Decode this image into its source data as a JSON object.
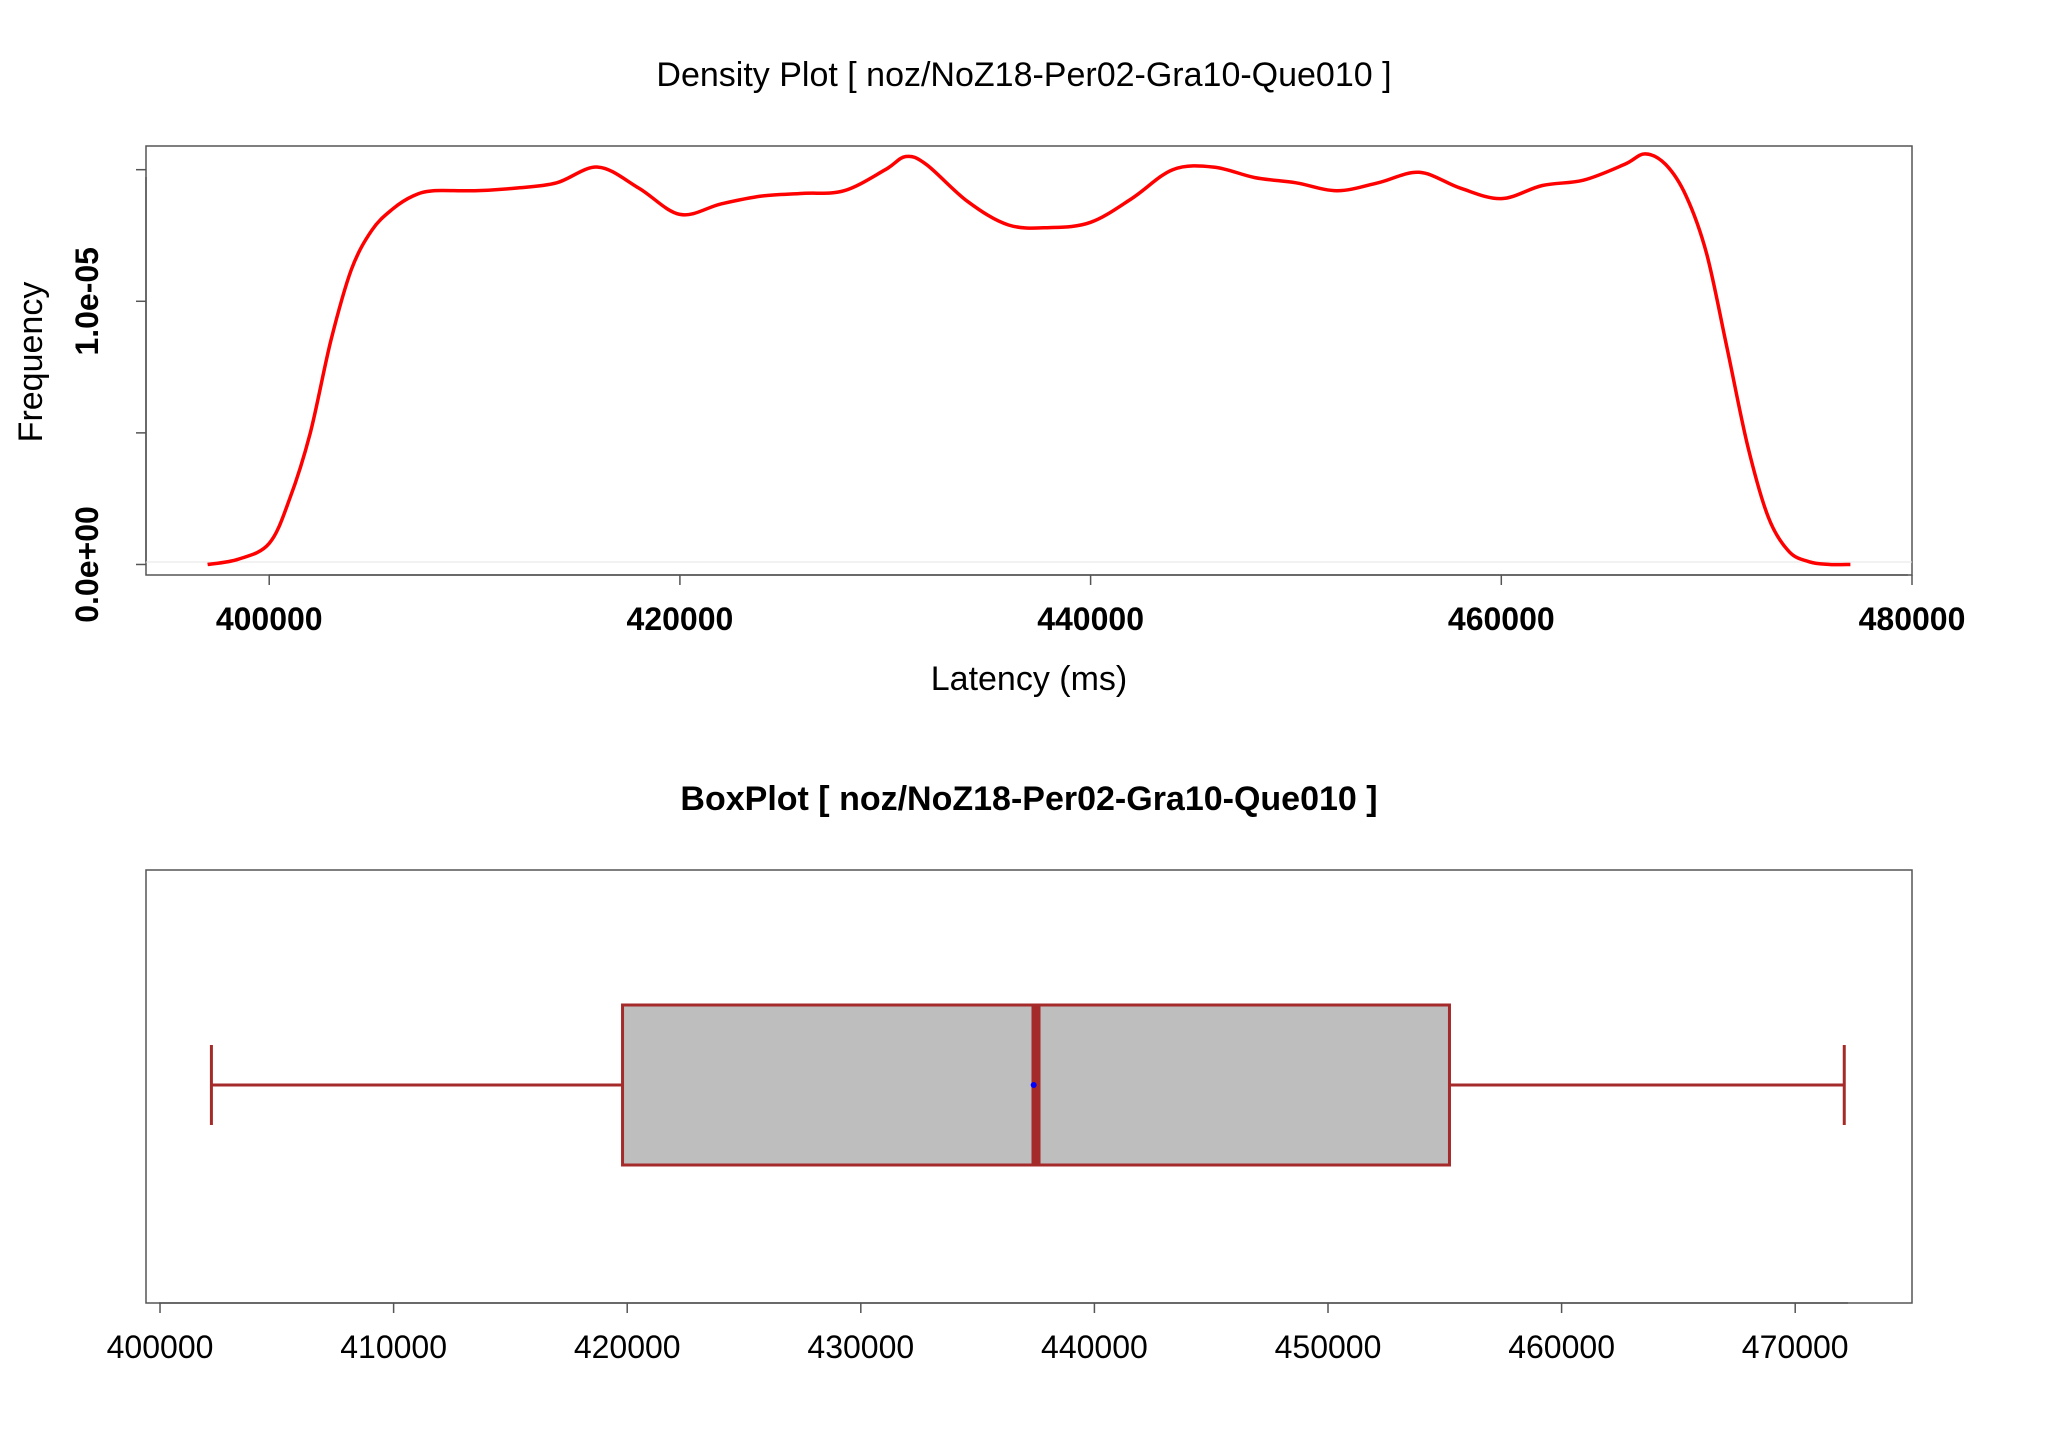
{
  "chart_data": [
    {
      "type": "line",
      "title": "Density Plot [ noz/NoZ18-Per02-Gra10-Que010 ]",
      "xlabel": "Latency (ms)",
      "ylabel": "Frequency",
      "xlim": [
        394000,
        480000
      ],
      "ylim": [
        -4e-07,
        1.59e-05
      ],
      "x_ticks": [
        400000,
        420000,
        440000,
        460000,
        480000
      ],
      "x_tick_labels": [
        "400000",
        "420000",
        "440000",
        "460000",
        "480000"
      ],
      "y_ticks": [
        0,
        5e-06,
        1e-05,
        1.5e-05
      ],
      "y_tick_labels": [
        "0.0e+00",
        "",
        "1.0e-05",
        ""
      ],
      "grid": false,
      "line_color": "#ff0000",
      "series": [
        {
          "x": [
            397000,
            398500,
            400000,
            401000,
            402000,
            403000,
            404000,
            405000,
            406000,
            407000,
            408000,
            410000,
            412000,
            414000,
            416000,
            418000,
            420000,
            422000,
            424000,
            426000,
            428000,
            430000,
            431000,
            432000,
            434000,
            436000,
            438000,
            440000,
            442000,
            444000,
            446000,
            448000,
            450000,
            452000,
            454000,
            456000,
            458000,
            460000,
            462000,
            464000,
            466000,
            467000,
            468000,
            469000,
            470000,
            471000,
            472000,
            473000,
            474000,
            475000,
            476000,
            477000
          ],
          "y": [
            0.0,
            2e-07,
            8e-07,
            2.5e-06,
            5e-06,
            8.5e-06,
            1.12e-05,
            1.27e-05,
            1.35e-05,
            1.4e-05,
            1.42e-05,
            1.42e-05,
            1.43e-05,
            1.45e-05,
            1.51e-05,
            1.43e-05,
            1.33e-05,
            1.37e-05,
            1.4e-05,
            1.41e-05,
            1.42e-05,
            1.5e-05,
            1.55e-05,
            1.52e-05,
            1.38e-05,
            1.29e-05,
            1.28e-05,
            1.3e-05,
            1.39e-05,
            1.5e-05,
            1.51e-05,
            1.47e-05,
            1.45e-05,
            1.42e-05,
            1.45e-05,
            1.49e-05,
            1.43e-05,
            1.39e-05,
            1.44e-05,
            1.46e-05,
            1.52e-05,
            1.56e-05,
            1.52e-05,
            1.4e-05,
            1.18e-05,
            8.2e-06,
            4.5e-06,
            1.8e-06,
            5e-07,
            1e-07,
            0.0,
            0.0
          ]
        }
      ]
    },
    {
      "type": "box",
      "title": "BoxPlot [ noz/NoZ18-Per02-Gra10-Que010 ]",
      "xlim": [
        399400,
        475000
      ],
      "x_ticks": [
        400000,
        410000,
        420000,
        430000,
        440000,
        450000,
        460000,
        470000
      ],
      "x_tick_labels": [
        "400000",
        "410000",
        "420000",
        "430000",
        "440000",
        "450000",
        "460000",
        "470000"
      ],
      "whisker_low": 402200,
      "q1": 419800,
      "median": 437500,
      "mean": 437400,
      "q3": 455200,
      "whisker_high": 472100,
      "box_fill": "#bebebe",
      "box_stroke": "#a52a2a",
      "mean_color": "#0000ff"
    }
  ]
}
